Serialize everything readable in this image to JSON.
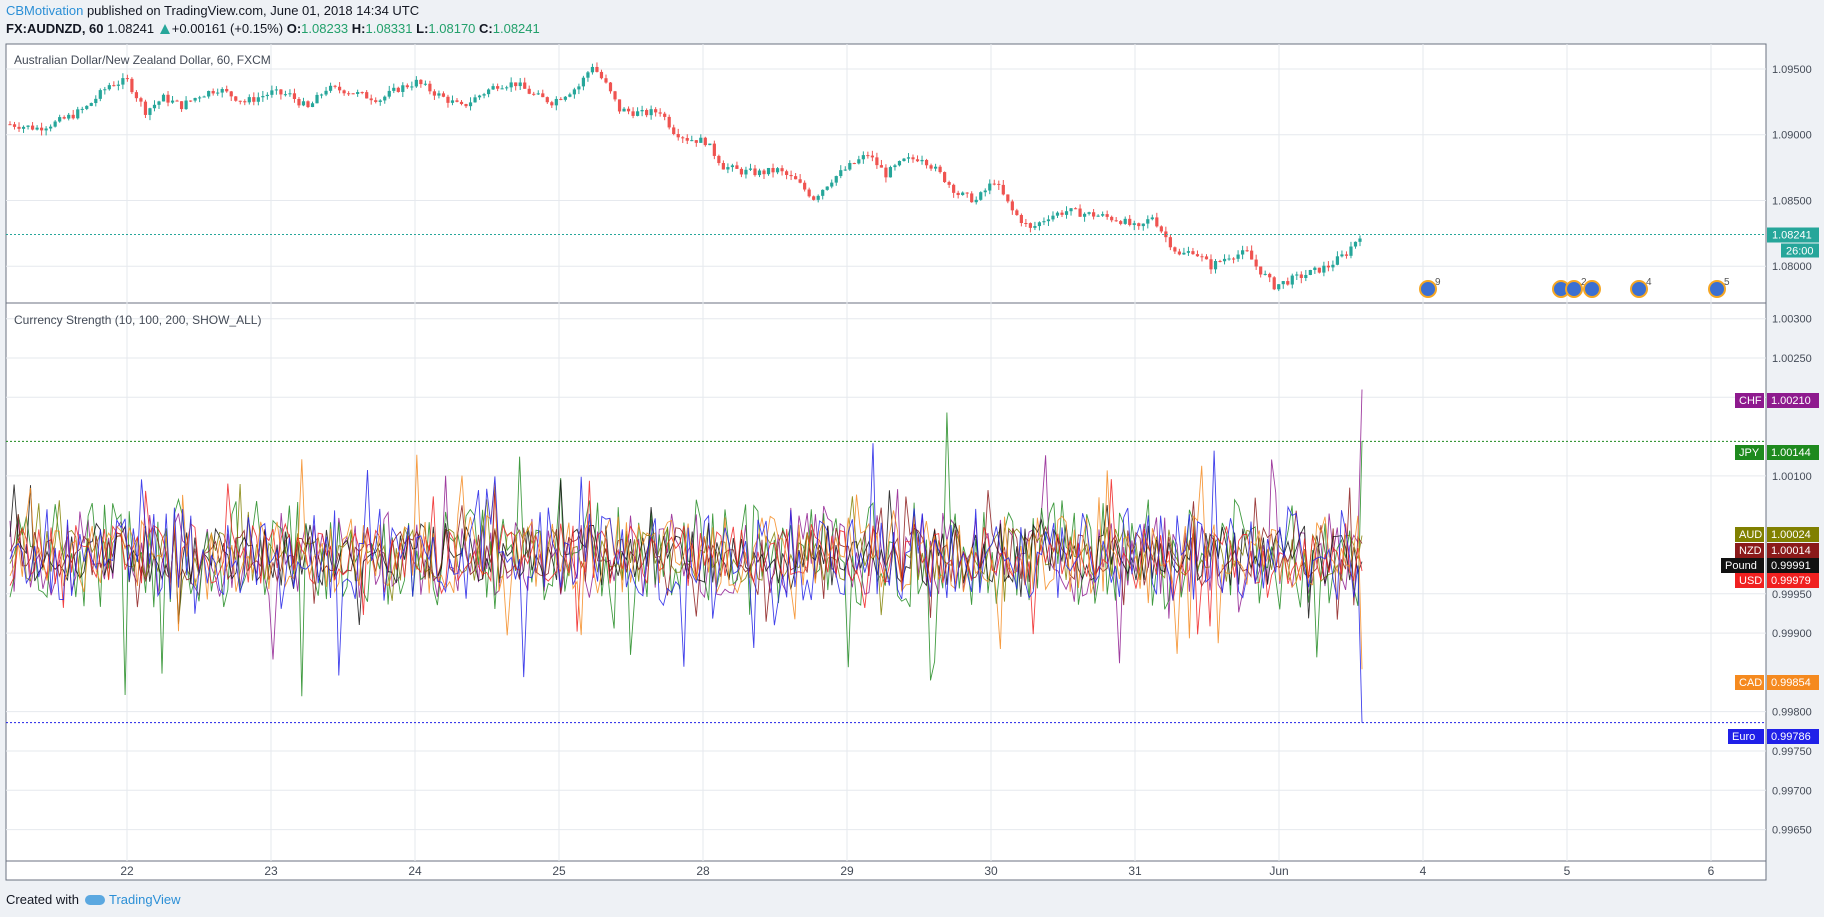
{
  "header": {
    "author": "CBMotivation",
    "published": "published on TradingView.com, June 01, 2018 14:34 UTC",
    "symbol": "FX:AUDNZD, 60",
    "last": "1.08241",
    "change": "+0.00161 (+0.15%)",
    "o_label": "O:",
    "o": "1.08233",
    "h_label": "H:",
    "h": "1.08331",
    "l_label": "L:",
    "l": "1.08170",
    "c_label": "C:",
    "c": "1.08241"
  },
  "footer": {
    "created_with": "Created with",
    "brand": "TradingView"
  },
  "colors": {
    "up": "#26a69a",
    "down": "#ef5350",
    "grid": "#e6e9ee",
    "axis_text": "#444b57"
  },
  "chart_data": [
    {
      "type": "candlestick",
      "title": "Australian Dollar/New Zealand Dollar, 60, FXCM",
      "ylim": [
        1.0772,
        1.0969
      ],
      "y_ticks": [
        "1.09500",
        "1.09000",
        "1.08500",
        "1.08000"
      ],
      "y_tick_values": [
        1.095,
        1.09,
        1.085,
        1.08
      ],
      "x_ticks": [
        "22",
        "23",
        "24",
        "25",
        "28",
        "29",
        "30",
        "31",
        "Jun",
        "4",
        "5",
        "6"
      ],
      "close_path": [
        [
          0,
          1.0908
        ],
        [
          6,
          1.0905
        ],
        [
          10,
          1.0909
        ],
        [
          14,
          1.0915
        ],
        [
          17,
          1.0921
        ],
        [
          22,
          1.0938
        ],
        [
          26,
          1.0941
        ],
        [
          30,
          1.0918
        ],
        [
          34,
          1.0928
        ],
        [
          38,
          1.0922
        ],
        [
          42,
          1.093
        ],
        [
          46,
          1.0935
        ],
        [
          52,
          1.0925
        ],
        [
          58,
          1.0932
        ],
        [
          62,
          1.093
        ],
        [
          66,
          1.092
        ],
        [
          70,
          1.0935
        ],
        [
          74,
          1.0934
        ],
        [
          78,
          1.093
        ],
        [
          82,
          1.0927
        ],
        [
          86,
          1.0935
        ],
        [
          90,
          1.094
        ],
        [
          95,
          1.093
        ],
        [
          100,
          1.0921
        ],
        [
          104,
          1.093
        ],
        [
          108,
          1.0938
        ],
        [
          112,
          1.0939
        ],
        [
          116,
          1.093
        ],
        [
          120,
          1.0925
        ],
        [
          126,
          1.0937
        ],
        [
          129,
          1.0953
        ],
        [
          132,
          1.0938
        ],
        [
          135,
          1.0919
        ],
        [
          140,
          1.0916
        ],
        [
          144,
          1.0918
        ],
        [
          147,
          1.0903
        ],
        [
          150,
          1.0897
        ],
        [
          154,
          1.0895
        ],
        [
          158,
          1.0876
        ],
        [
          162,
          1.0872
        ],
        [
          166,
          1.0871
        ],
        [
          170,
          1.0873
        ],
        [
          174,
          1.0865
        ],
        [
          178,
          1.0852
        ],
        [
          182,
          1.0866
        ],
        [
          186,
          1.0876
        ],
        [
          190,
          1.0885
        ],
        [
          194,
          1.087
        ],
        [
          198,
          1.088
        ],
        [
          202,
          1.0883
        ],
        [
          206,
          1.087
        ],
        [
          210,
          1.0855
        ],
        [
          214,
          1.085
        ],
        [
          218,
          1.0865
        ],
        [
          222,
          1.0842
        ],
        [
          226,
          1.0828
        ],
        [
          230,
          1.0838
        ],
        [
          234,
          1.0842
        ],
        [
          238,
          1.084
        ],
        [
          242,
          1.0838
        ],
        [
          246,
          1.0835
        ],
        [
          250,
          1.0828
        ],
        [
          253,
          1.0838
        ],
        [
          256,
          1.0822
        ],
        [
          259,
          1.0808
        ],
        [
          262,
          1.0812
        ],
        [
          266,
          1.08
        ],
        [
          270,
          1.0808
        ],
        [
          274,
          1.081
        ],
        [
          276,
          1.08
        ],
        [
          280,
          1.0785
        ],
        [
          284,
          1.079
        ],
        [
          288,
          1.0795
        ],
        [
          292,
          1.08
        ],
        [
          296,
          1.081
        ],
        [
          299,
          1.0824
        ]
      ],
      "n_bars": 300,
      "current_price": {
        "label": "1.08241",
        "value": 1.08241,
        "countdown": "26:00"
      },
      "events": [
        {
          "label": "9"
        },
        {
          "label": ""
        },
        {
          "label": "2"
        },
        {
          "label": ""
        },
        {
          "label": "4"
        },
        {
          "label": "5"
        }
      ]
    },
    {
      "type": "line",
      "title": "Currency Strength (10, 100, 200, SHOW_ALL)",
      "ylim": [
        0.9961,
        1.0032
      ],
      "y_ticks": [
        "1.00300",
        "1.00250",
        "1.00200",
        "1.00100",
        "0.99950",
        "0.99900",
        "0.99800",
        "0.99750",
        "0.99700",
        "0.99650"
      ],
      "y_tick_values": [
        1.003,
        1.0025,
        1.002,
        1.001,
        0.9995,
        0.999,
        0.998,
        0.9975,
        0.997,
        0.9965
      ],
      "series": [
        {
          "name": "CHF",
          "color": "#8e1a8e",
          "last": "1.00210",
          "value": 1.0021,
          "amp": 0.00055
        },
        {
          "name": "JPY",
          "color": "#1e8a1e",
          "last": "1.00144",
          "value": 1.00144,
          "amp": 0.0007
        },
        {
          "name": "AUD",
          "color": "#808000",
          "last": "1.00024",
          "value": 1.00024,
          "amp": 0.00035
        },
        {
          "name": "NZD",
          "color": "#8b1a1a",
          "last": "1.00014",
          "value": 1.00014,
          "amp": 0.00035
        },
        {
          "name": "Pound",
          "color": "#111111",
          "last": "0.99991",
          "value": 0.99991,
          "amp": 0.0004
        },
        {
          "name": "USD",
          "color": "#f02020",
          "last": "0.99979",
          "value": 0.99979,
          "amp": 0.0004
        },
        {
          "name": "CAD",
          "color": "#f58a1f",
          "last": "0.99854",
          "value": 0.99854,
          "amp": 0.0005
        },
        {
          "name": "Euro",
          "color": "#2020e8",
          "last": "0.99786",
          "value": 0.99786,
          "amp": 0.0006
        }
      ],
      "guide_lines": [
        {
          "name": "JPY",
          "value": 1.00144
        },
        {
          "name": "Euro",
          "value": 0.99786
        }
      ]
    }
  ]
}
